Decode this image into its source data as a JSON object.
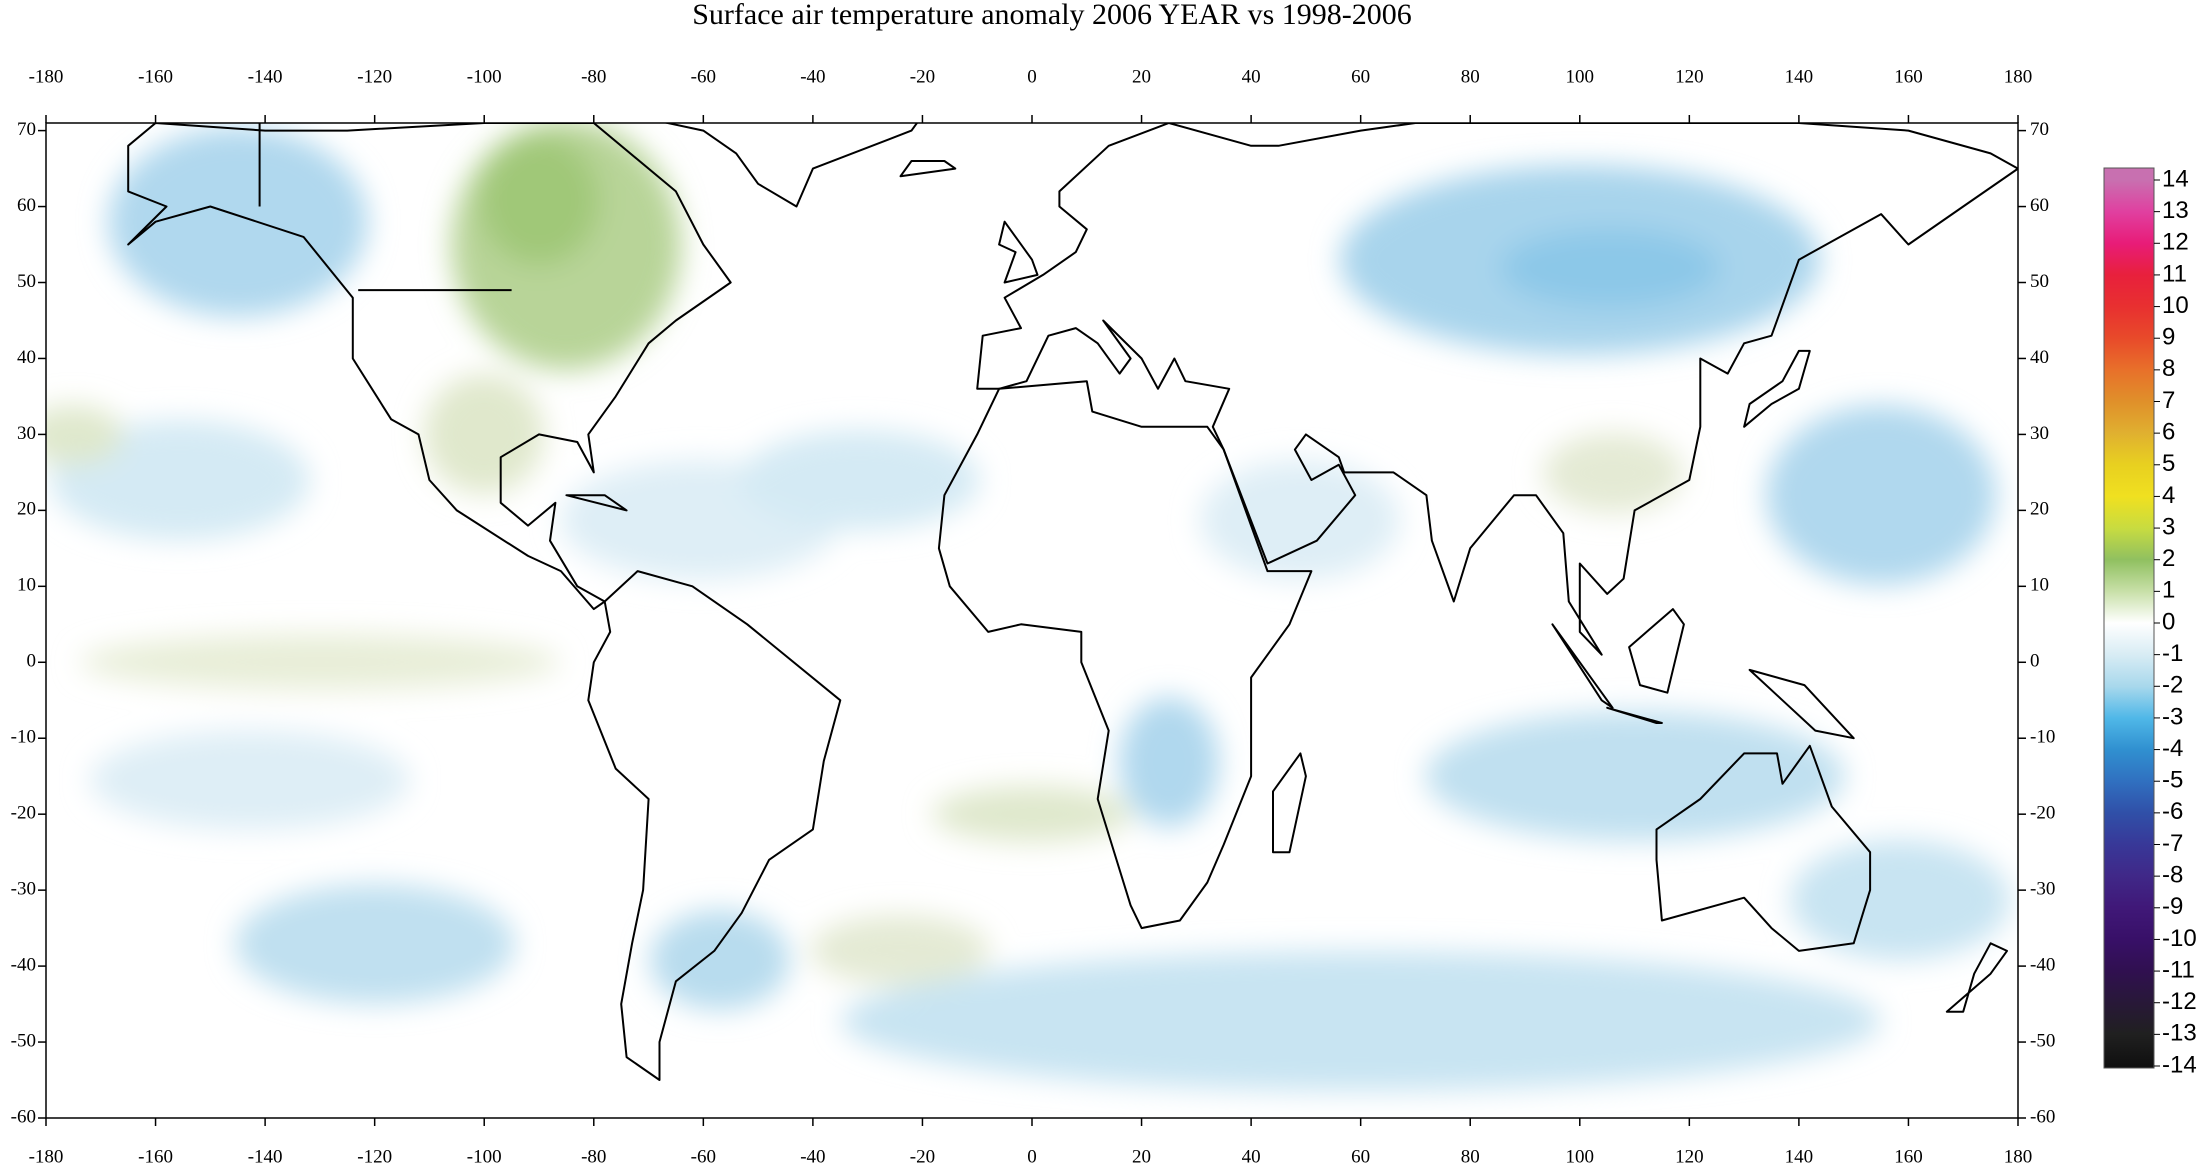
{
  "map": {
    "title": "Surface air temperature anomaly 2006 YEAR vs 1998-2006",
    "xlim": [
      -180,
      180
    ],
    "ylim": [
      -60,
      71
    ],
    "xticks": [
      -180,
      -160,
      -140,
      -120,
      -100,
      -80,
      -60,
      -40,
      -20,
      0,
      20,
      40,
      60,
      80,
      100,
      120,
      140,
      160,
      180
    ],
    "yticks": [
      -60,
      -50,
      -40,
      -30,
      -20,
      -10,
      0,
      10,
      20,
      30,
      40,
      50,
      60,
      70
    ],
    "colorbar": {
      "ticks": [
        14,
        13,
        12,
        11,
        10,
        9,
        8,
        7,
        6,
        5,
        4,
        3,
        2,
        1,
        0,
        -1,
        -2,
        -3,
        -4,
        -5,
        -6,
        -7,
        -8,
        -9,
        -10,
        -11,
        -12,
        -13,
        -14
      ],
      "colors": [
        "#c870b0",
        "#e040a0",
        "#e81c78",
        "#e8203c",
        "#e83030",
        "#e84a2a",
        "#e8702a",
        "#e0902a",
        "#e0b030",
        "#e8d020",
        "#f0e020",
        "#c8dc40",
        "#90c060",
        "#c8e0a8",
        "#ffffff",
        "#d8ecf4",
        "#a8d8ec",
        "#50b8e8",
        "#3090d0",
        "#3070c0",
        "#3050a8",
        "#383898",
        "#402888",
        "#401878",
        "#381068",
        "#301050",
        "#281838",
        "#202020",
        "#101010"
      ]
    }
  }
}
